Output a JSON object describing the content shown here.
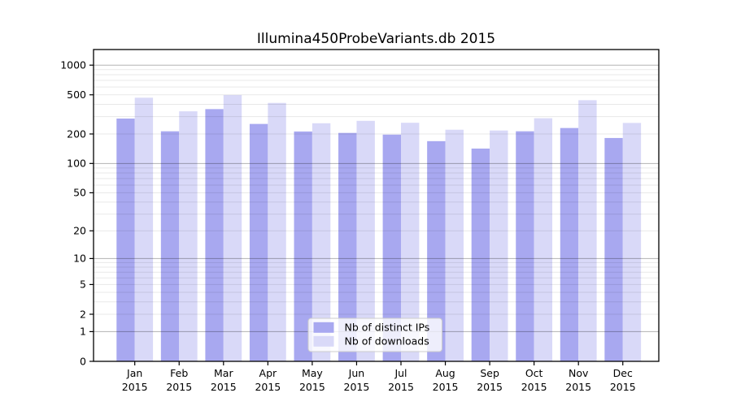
{
  "chart_data": {
    "type": "bar",
    "title": "Illumina450ProbeVariants.db 2015",
    "categories": [
      "Jan",
      "Feb",
      "Mar",
      "Apr",
      "May",
      "Jun",
      "Jul",
      "Aug",
      "Sep",
      "Oct",
      "Nov",
      "Dec"
    ],
    "category_year": "2015",
    "series": [
      {
        "name": "Nb of distinct IPs",
        "color": "#a8a8f0",
        "values": [
          287,
          213,
          358,
          253,
          212,
          205,
          197,
          169,
          142,
          213,
          230,
          182
        ]
      },
      {
        "name": "Nb of downloads",
        "color": "#d9d9f8",
        "values": [
          467,
          340,
          497,
          414,
          257,
          272,
          260,
          221,
          217,
          289,
          441,
          259
        ]
      }
    ],
    "xlabel": "",
    "ylabel": "",
    "y_axis": {
      "scale": "log1p",
      "tick_labels": [
        0,
        1,
        2,
        5,
        10,
        20,
        50,
        100,
        200,
        500,
        1000
      ],
      "major_gridlines": [
        1,
        10,
        100,
        1000
      ],
      "ylim": [
        0,
        1400
      ]
    },
    "grid": "on (log minor + major, drawn over bars)",
    "legend": {
      "position": "inside-bottom-center"
    }
  }
}
